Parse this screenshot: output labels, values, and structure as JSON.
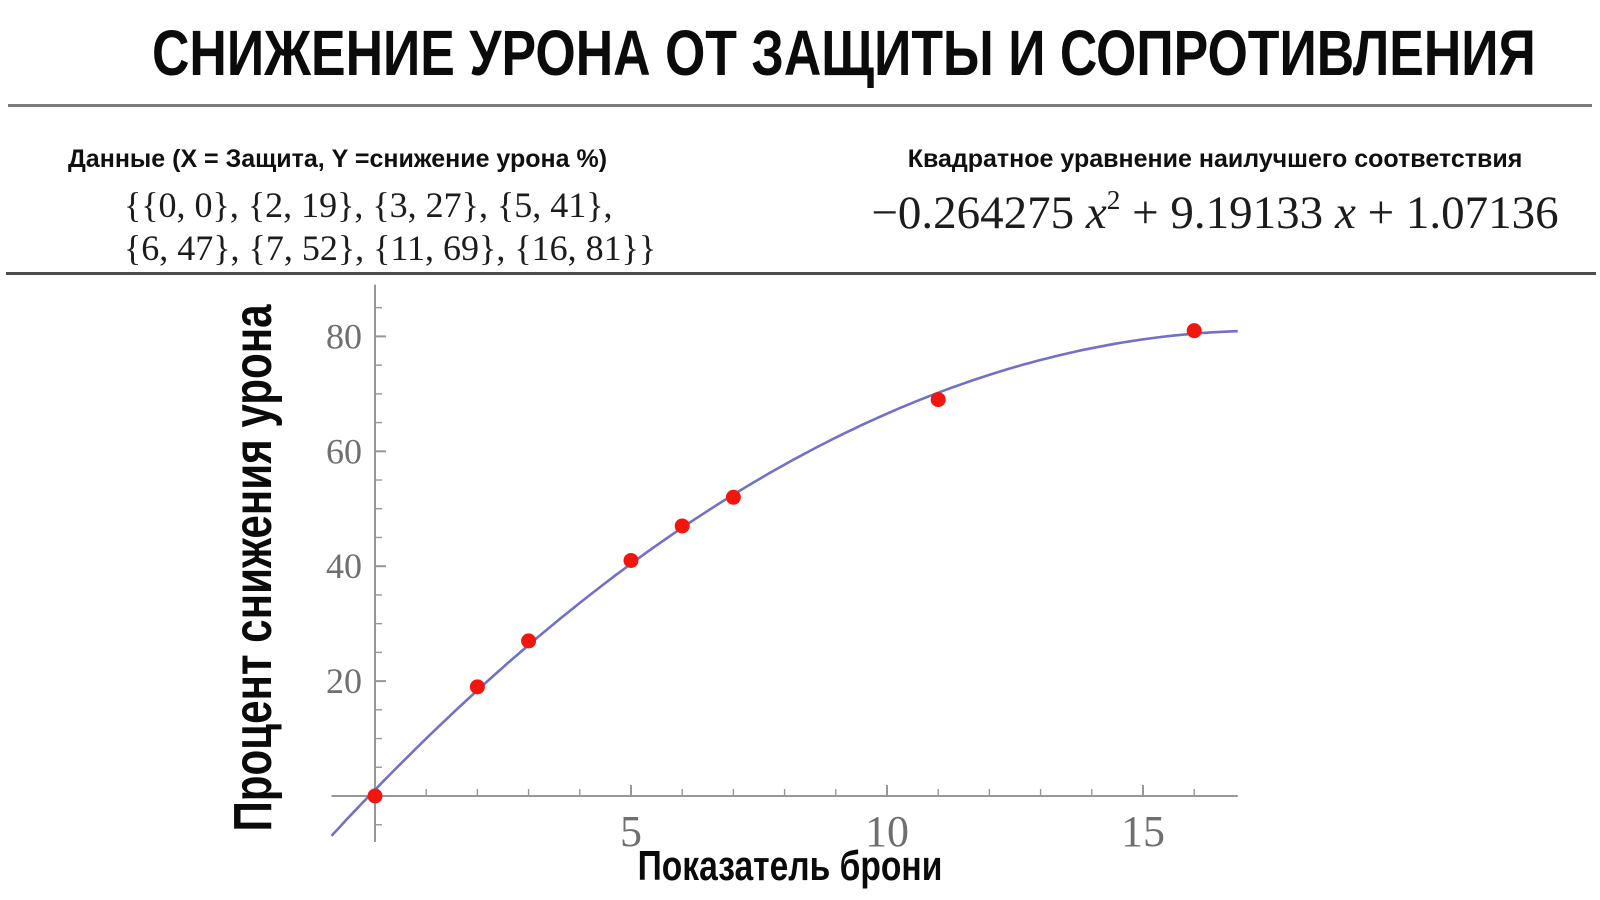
{
  "title": "СНИЖЕНИЕ УРОНА ОТ ЗАЩИТЫ И СОПРОТИВЛЕНИЯ",
  "data_panel": {
    "header": "Данные (X = Защита, Y =снижение урона %)",
    "line1": "{{0, 0}, {2, 19}, {3, 27}, {5, 41},",
    "line2": "{6, 47}, {7, 52}, {11, 69}, {16, 81}}"
  },
  "equation_panel": {
    "header": "Квадратное уравнение наилучшего соответствия",
    "a_term": "−0.264275 ",
    "x_var": "x",
    "exponent": "2",
    "b_term": " + 9.19133 ",
    "c_term": " + 1.07136"
  },
  "chart_data": {
    "type": "scatter",
    "title": "СНИЖЕНИЕ УРОНА ОТ ЗАЩИТЫ И СОПРОТИВЛЕНИЯ",
    "xlabel": "Показатель брони",
    "ylabel": "Процент снижения урона",
    "points": [
      [
        0,
        0
      ],
      [
        2,
        19
      ],
      [
        3,
        27
      ],
      [
        5,
        41
      ],
      [
        6,
        47
      ],
      [
        7,
        52
      ],
      [
        11,
        69
      ],
      [
        16,
        81
      ]
    ],
    "fit_curve": {
      "type": "quadratic",
      "a": -0.264275,
      "b": 9.19133,
      "c": 1.07136
    },
    "x_ticks": [
      5,
      10,
      15
    ],
    "y_ticks": [
      20,
      40,
      60,
      80
    ],
    "x_minor_tick_step": 1,
    "y_minor_tick_step": 5,
    "xlim": [
      -0.85,
      16.85
    ],
    "ylim": [
      -8,
      89
    ],
    "grid": false,
    "legend": "none",
    "colors": {
      "point": "#f2170e",
      "curve": "#7172c6",
      "axis": "#979797",
      "tick_label": "#6f6f6f"
    }
  }
}
